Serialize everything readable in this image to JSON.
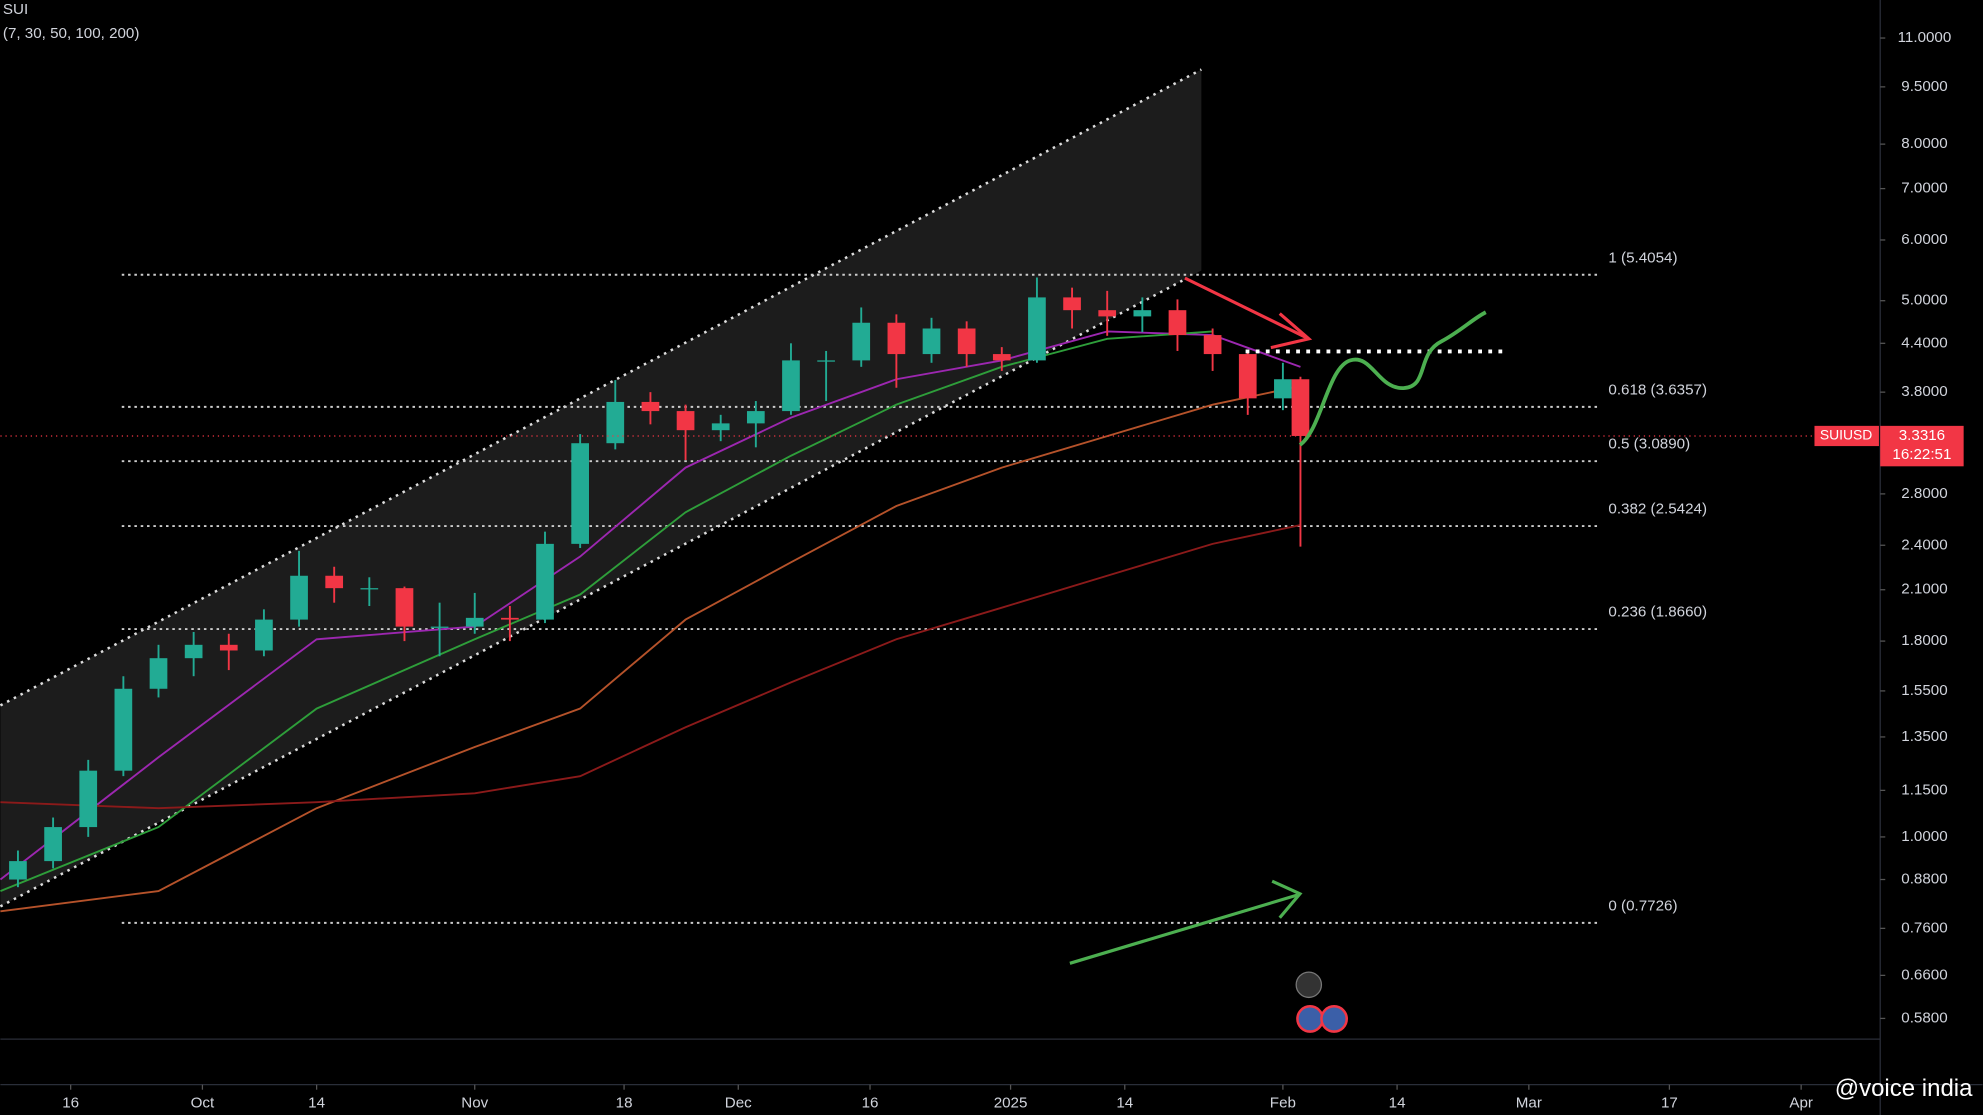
{
  "chart_data": {
    "type": "candlestick",
    "title": "SUI",
    "subtitle": "(7, 30, 50, 100, 200)",
    "watermark": "@voice india",
    "log_scale": true,
    "ylim": [
      0.545,
      12.33
    ],
    "yticks": [
      {
        "value": 11,
        "label": "11.0000"
      },
      {
        "value": 9.5,
        "label": "9.5000"
      },
      {
        "value": 8,
        "label": "8.0000"
      },
      {
        "value": 7,
        "label": "7.0000"
      },
      {
        "value": 6,
        "label": "6.0000"
      },
      {
        "value": 5,
        "label": "5.0000"
      },
      {
        "value": 4.4,
        "label": "4.4000"
      },
      {
        "value": 3.8,
        "label": "3.8000"
      },
      {
        "value": 2.8,
        "label": "2.8000"
      },
      {
        "value": 2.4,
        "label": "2.4000"
      },
      {
        "value": 2.1,
        "label": "2.1000"
      },
      {
        "value": 1.8,
        "label": "1.8000"
      },
      {
        "value": 1.55,
        "label": "1.5500"
      },
      {
        "value": 1.35,
        "label": "1.3500"
      },
      {
        "value": 1.15,
        "label": "1.1500"
      },
      {
        "value": 1,
        "label": "1.0000"
      },
      {
        "value": 0.88,
        "label": "0.8800"
      },
      {
        "value": 0.76,
        "label": "0.7600"
      },
      {
        "value": 0.66,
        "label": "0.6600"
      },
      {
        "value": 0.58,
        "label": "0.5800"
      }
    ],
    "xlim": [
      "2024-09-08",
      "2025-04-10"
    ],
    "xticks": [
      {
        "value": "2024-09-16",
        "label": "16"
      },
      {
        "value": "2024-10-01",
        "label": "Oct"
      },
      {
        "value": "2024-10-14",
        "label": "14"
      },
      {
        "value": "2024-11-01",
        "label": "Nov"
      },
      {
        "value": "2024-11-18",
        "label": "18"
      },
      {
        "value": "2024-12-01",
        "label": "Dec"
      },
      {
        "value": "2024-12-16",
        "label": "16"
      },
      {
        "value": "2025-01-01",
        "label": "2025"
      },
      {
        "value": "2025-01-14",
        "label": "14"
      },
      {
        "value": "2025-02-01",
        "label": "Feb"
      },
      {
        "value": "2025-02-14",
        "label": "14"
      },
      {
        "value": "2025-03-01",
        "label": "Mar"
      },
      {
        "value": "2025-03-17",
        "label": "17"
      },
      {
        "value": "2025-04-01",
        "label": "Apr"
      }
    ],
    "up_color": "#22ab94",
    "down_color": "#f23645",
    "candles": {
      "x": [
        "2024-09-10",
        "2024-09-14",
        "2024-09-18",
        "2024-09-22",
        "2024-09-26",
        "2024-09-30",
        "2024-10-04",
        "2024-10-08",
        "2024-10-12",
        "2024-10-16",
        "2024-10-20",
        "2024-10-24",
        "2024-10-28",
        "2024-11-01",
        "2024-11-05",
        "2024-11-09",
        "2024-11-13",
        "2024-11-17",
        "2024-11-21",
        "2024-11-25",
        "2024-11-29",
        "2024-12-03",
        "2024-12-07",
        "2024-12-11",
        "2024-12-15",
        "2024-12-19",
        "2024-12-23",
        "2024-12-27",
        "2024-12-31",
        "2025-01-04",
        "2025-01-08",
        "2025-01-12",
        "2025-01-16",
        "2025-01-20",
        "2025-01-24",
        "2025-01-28",
        "2025-02-01",
        "2025-02-03"
      ],
      "open": [
        0.88,
        0.93,
        1.03,
        1.22,
        1.56,
        1.71,
        1.78,
        1.75,
        1.92,
        2.19,
        2.11,
        2.11,
        1.88,
        1.88,
        1.93,
        1.92,
        2.41,
        3.26,
        3.69,
        3.59,
        3.39,
        3.46,
        3.59,
        4.18,
        4.18,
        4.68,
        4.26,
        4.6,
        4.26,
        4.18,
        5.05,
        4.86,
        4.77,
        4.86,
        4.51,
        4.26,
        3.73,
        3.95
      ],
      "high": [
        0.96,
        1.06,
        1.26,
        1.62,
        1.78,
        1.85,
        1.84,
        1.98,
        2.36,
        2.25,
        2.18,
        2.12,
        2.02,
        2.08,
        2.0,
        2.5,
        3.35,
        3.94,
        3.8,
        3.66,
        3.55,
        3.7,
        4.4,
        4.3,
        4.9,
        4.8,
        4.75,
        4.7,
        4.35,
        5.36,
        5.2,
        5.15,
        5.05,
        5.02,
        4.6,
        4.3,
        4.15,
        3.98
      ],
      "low": [
        0.86,
        0.91,
        1.0,
        1.2,
        1.52,
        1.62,
        1.65,
        1.72,
        1.88,
        2.02,
        2.0,
        1.8,
        1.72,
        1.84,
        1.8,
        1.9,
        2.38,
        3.2,
        3.45,
        3.1,
        3.28,
        3.22,
        3.55,
        3.7,
        4.1,
        3.85,
        4.15,
        4.1,
        4.05,
        4.15,
        4.6,
        4.5,
        4.55,
        4.3,
        4.05,
        3.55,
        3.6,
        2.39
      ],
      "close": [
        0.93,
        1.03,
        1.22,
        1.56,
        1.71,
        1.78,
        1.75,
        1.92,
        2.19,
        2.11,
        2.11,
        1.88,
        1.88,
        1.93,
        1.92,
        2.41,
        3.26,
        3.69,
        3.59,
        3.39,
        3.46,
        3.59,
        4.18,
        4.18,
        4.68,
        4.26,
        4.6,
        4.26,
        4.18,
        5.05,
        4.86,
        4.77,
        4.86,
        4.51,
        4.26,
        3.73,
        3.95,
        3.3316
      ]
    },
    "moving_averages": [
      {
        "color": "#9c27b0",
        "x": [
          "2024-09-08",
          "2024-09-26",
          "2024-10-14",
          "2024-11-01",
          "2024-11-13",
          "2024-11-25",
          "2024-12-07",
          "2024-12-19",
          "2024-12-31",
          "2025-01-12",
          "2025-01-24",
          "2025-02-03"
        ],
        "values": [
          0.88,
          1.27,
          1.81,
          1.88,
          2.32,
          3.03,
          3.52,
          3.95,
          4.18,
          4.56,
          4.51,
          4.1
        ]
      },
      {
        "color": "#2e9e3a",
        "x": [
          "2024-09-08",
          "2024-09-26",
          "2024-10-14",
          "2024-11-01",
          "2024-11-13",
          "2024-11-25",
          "2024-12-07",
          "2024-12-19",
          "2024-12-31",
          "2025-01-12",
          "2025-01-24"
        ],
        "values": [
          0.85,
          1.03,
          1.47,
          1.81,
          2.07,
          2.65,
          3.14,
          3.66,
          4.1,
          4.46,
          4.56
        ]
      },
      {
        "color": "#b5522a",
        "x": [
          "2024-09-08",
          "2024-09-26",
          "2024-10-14",
          "2024-11-01",
          "2024-11-13",
          "2024-11-25",
          "2024-12-07",
          "2024-12-19",
          "2024-12-31",
          "2025-01-12",
          "2025-01-24",
          "2025-02-03"
        ],
        "values": [
          0.8,
          0.85,
          1.09,
          1.31,
          1.47,
          1.92,
          2.28,
          2.7,
          3.03,
          3.33,
          3.66,
          3.87
        ]
      },
      {
        "color": "#8b1a1a",
        "x": [
          "2024-09-08",
          "2024-09-26",
          "2024-10-14",
          "2024-11-01",
          "2024-11-13",
          "2024-11-25",
          "2024-12-07",
          "2024-12-19",
          "2024-12-31",
          "2025-01-12",
          "2025-01-24",
          "2025-02-03"
        ],
        "values": [
          1.11,
          1.09,
          1.11,
          1.14,
          1.2,
          1.39,
          1.59,
          1.81,
          1.99,
          2.19,
          2.41,
          2.55
        ]
      }
    ],
    "fib_levels": [
      {
        "value": 5.4054,
        "label": "1 (5.4054)"
      },
      {
        "value": 3.6357,
        "label": "0.618 (3.6357)"
      },
      {
        "value": 3.089,
        "label": "0.5 (3.0890)"
      },
      {
        "value": 2.5424,
        "label": "0.382 (2.5424)"
      },
      {
        "value": 1.866,
        "label": "0.236 (1.8660)"
      },
      {
        "value": 0.7726,
        "label": "0 (0.7726)"
      }
    ],
    "last_price": {
      "value": 3.3316,
      "label": "3.3316"
    },
    "symbol": "SUIUSD",
    "countdown": "16:22:51"
  }
}
